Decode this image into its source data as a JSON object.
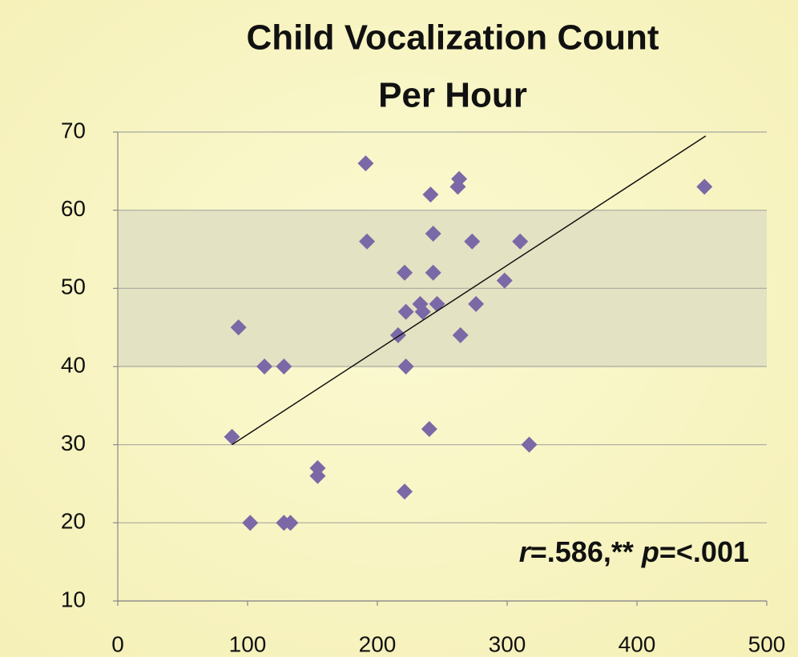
{
  "chart_data": {
    "type": "scatter",
    "title": [
      "Child Vocalization Count",
      "Per Hour"
    ],
    "annotation": [
      "r",
      "=.586,** ",
      "p",
      "=<.001"
    ],
    "x": [
      191,
      263,
      262,
      452,
      241,
      192,
      243,
      273,
      310,
      221,
      243,
      298,
      233,
      246,
      276,
      222,
      235,
      93,
      216,
      264,
      113,
      128,
      222,
      88,
      240,
      317,
      154,
      154,
      221,
      102,
      128,
      133
    ],
    "values": [
      66,
      64,
      63,
      63,
      62,
      56,
      57,
      56,
      56,
      52,
      52,
      51,
      48,
      48,
      48,
      47,
      47,
      45,
      44,
      44,
      40,
      40,
      40,
      31,
      32,
      30,
      27,
      26,
      24,
      20,
      20,
      20
    ],
    "color": "#7b68a6",
    "trendline": {
      "x": [
        88,
        453
      ],
      "y": [
        30,
        69.5
      ],
      "color": "#111111"
    },
    "shaded_band": [
      40,
      60
    ],
    "band_color": "#e3e2c2",
    "xlim": [
      0,
      500
    ],
    "xticks": [
      0,
      100,
      200,
      300,
      400,
      500
    ],
    "ylim": [
      10,
      70
    ],
    "yticks": [
      10,
      20,
      30,
      40,
      50,
      60,
      70
    ],
    "grid": true
  }
}
